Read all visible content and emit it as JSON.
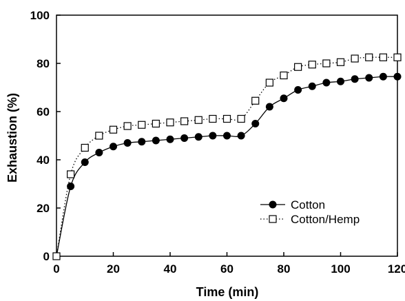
{
  "chart_data": {
    "type": "line",
    "title": "",
    "xlabel": "Time (min)",
    "ylabel": "Exhaustion (%)",
    "xlim": [
      0,
      120
    ],
    "ylim": [
      0,
      100
    ],
    "x_ticks": [
      0,
      20,
      40,
      60,
      80,
      100,
      120
    ],
    "y_ticks": [
      0,
      20,
      40,
      60,
      80,
      100
    ],
    "grid": false,
    "legend_position": "right",
    "series": [
      {
        "name": "Cotton",
        "marker": "filled-circle",
        "line_style": "solid",
        "color": "#000000",
        "x": [
          0,
          5,
          10,
          15,
          20,
          25,
          30,
          35,
          40,
          45,
          50,
          55,
          60,
          65,
          70,
          75,
          80,
          85,
          90,
          95,
          100,
          105,
          110,
          115,
          120
        ],
        "y": [
          0,
          29,
          39,
          43,
          45.5,
          47,
          47.5,
          48,
          48.5,
          49,
          49.5,
          50,
          50,
          50,
          55,
          62,
          65.5,
          69,
          70.5,
          72,
          72.5,
          73.5,
          74,
          74.5,
          74.5
        ]
      },
      {
        "name": "Cotton/Hemp",
        "marker": "open-square",
        "line_style": "dotted",
        "color": "#000000",
        "x": [
          0,
          5,
          10,
          15,
          20,
          25,
          30,
          35,
          40,
          45,
          50,
          55,
          60,
          65,
          70,
          75,
          80,
          85,
          90,
          95,
          100,
          105,
          110,
          115,
          120
        ],
        "y": [
          0,
          34,
          45,
          50,
          52.5,
          54,
          54.5,
          55,
          55.5,
          56,
          56.5,
          57,
          57,
          57,
          64.5,
          72,
          75,
          78.5,
          79.5,
          80,
          80.5,
          82,
          82.5,
          82.5,
          82.5
        ]
      }
    ]
  }
}
